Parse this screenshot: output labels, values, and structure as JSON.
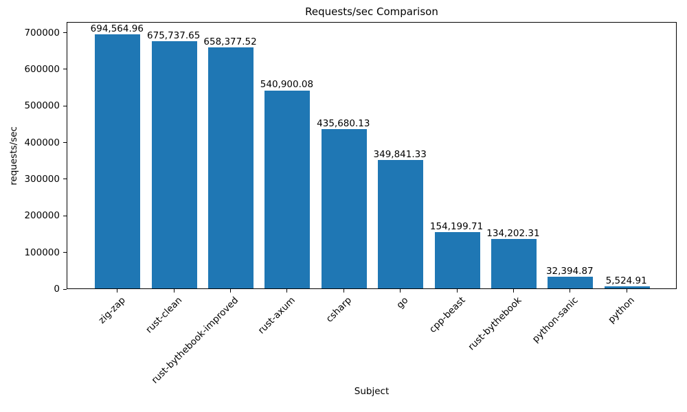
{
  "chart_data": {
    "type": "bar",
    "title": "Requests/sec Comparison",
    "xlabel": "Subject",
    "ylabel": "requests/sec",
    "categories": [
      "zig-zap",
      "rust-clean",
      "rust-bythebook-improved",
      "rust-axum",
      "csharp",
      "go",
      "cpp-beast",
      "rust-bythebook",
      "python-sanic",
      "python"
    ],
    "values": [
      694564.96,
      675737.65,
      658377.52,
      540900.08,
      435680.13,
      349841.33,
      154199.71,
      134202.31,
      32394.87,
      5524.91
    ],
    "bar_labels": [
      "694,564.96",
      "675,737.65",
      "658,377.52",
      "540,900.08",
      "435,680.13",
      "349,841.33",
      "154,199.71",
      "134,202.31",
      "32,394.87",
      "5,524.91"
    ],
    "yticks": [
      0,
      100000,
      200000,
      300000,
      400000,
      500000,
      600000,
      700000
    ],
    "ytick_labels": [
      "0",
      "100000",
      "200000",
      "300000",
      "400000",
      "500000",
      "600000",
      "700000"
    ],
    "ylim": [
      0,
      729293
    ],
    "bar_width_fraction": 0.8,
    "x_tick_rotation_deg": 45,
    "grid": false,
    "bar_color": "#1f77b4",
    "axis_color": "#000000",
    "text_color": "#000000",
    "background_color": "#ffffff"
  }
}
